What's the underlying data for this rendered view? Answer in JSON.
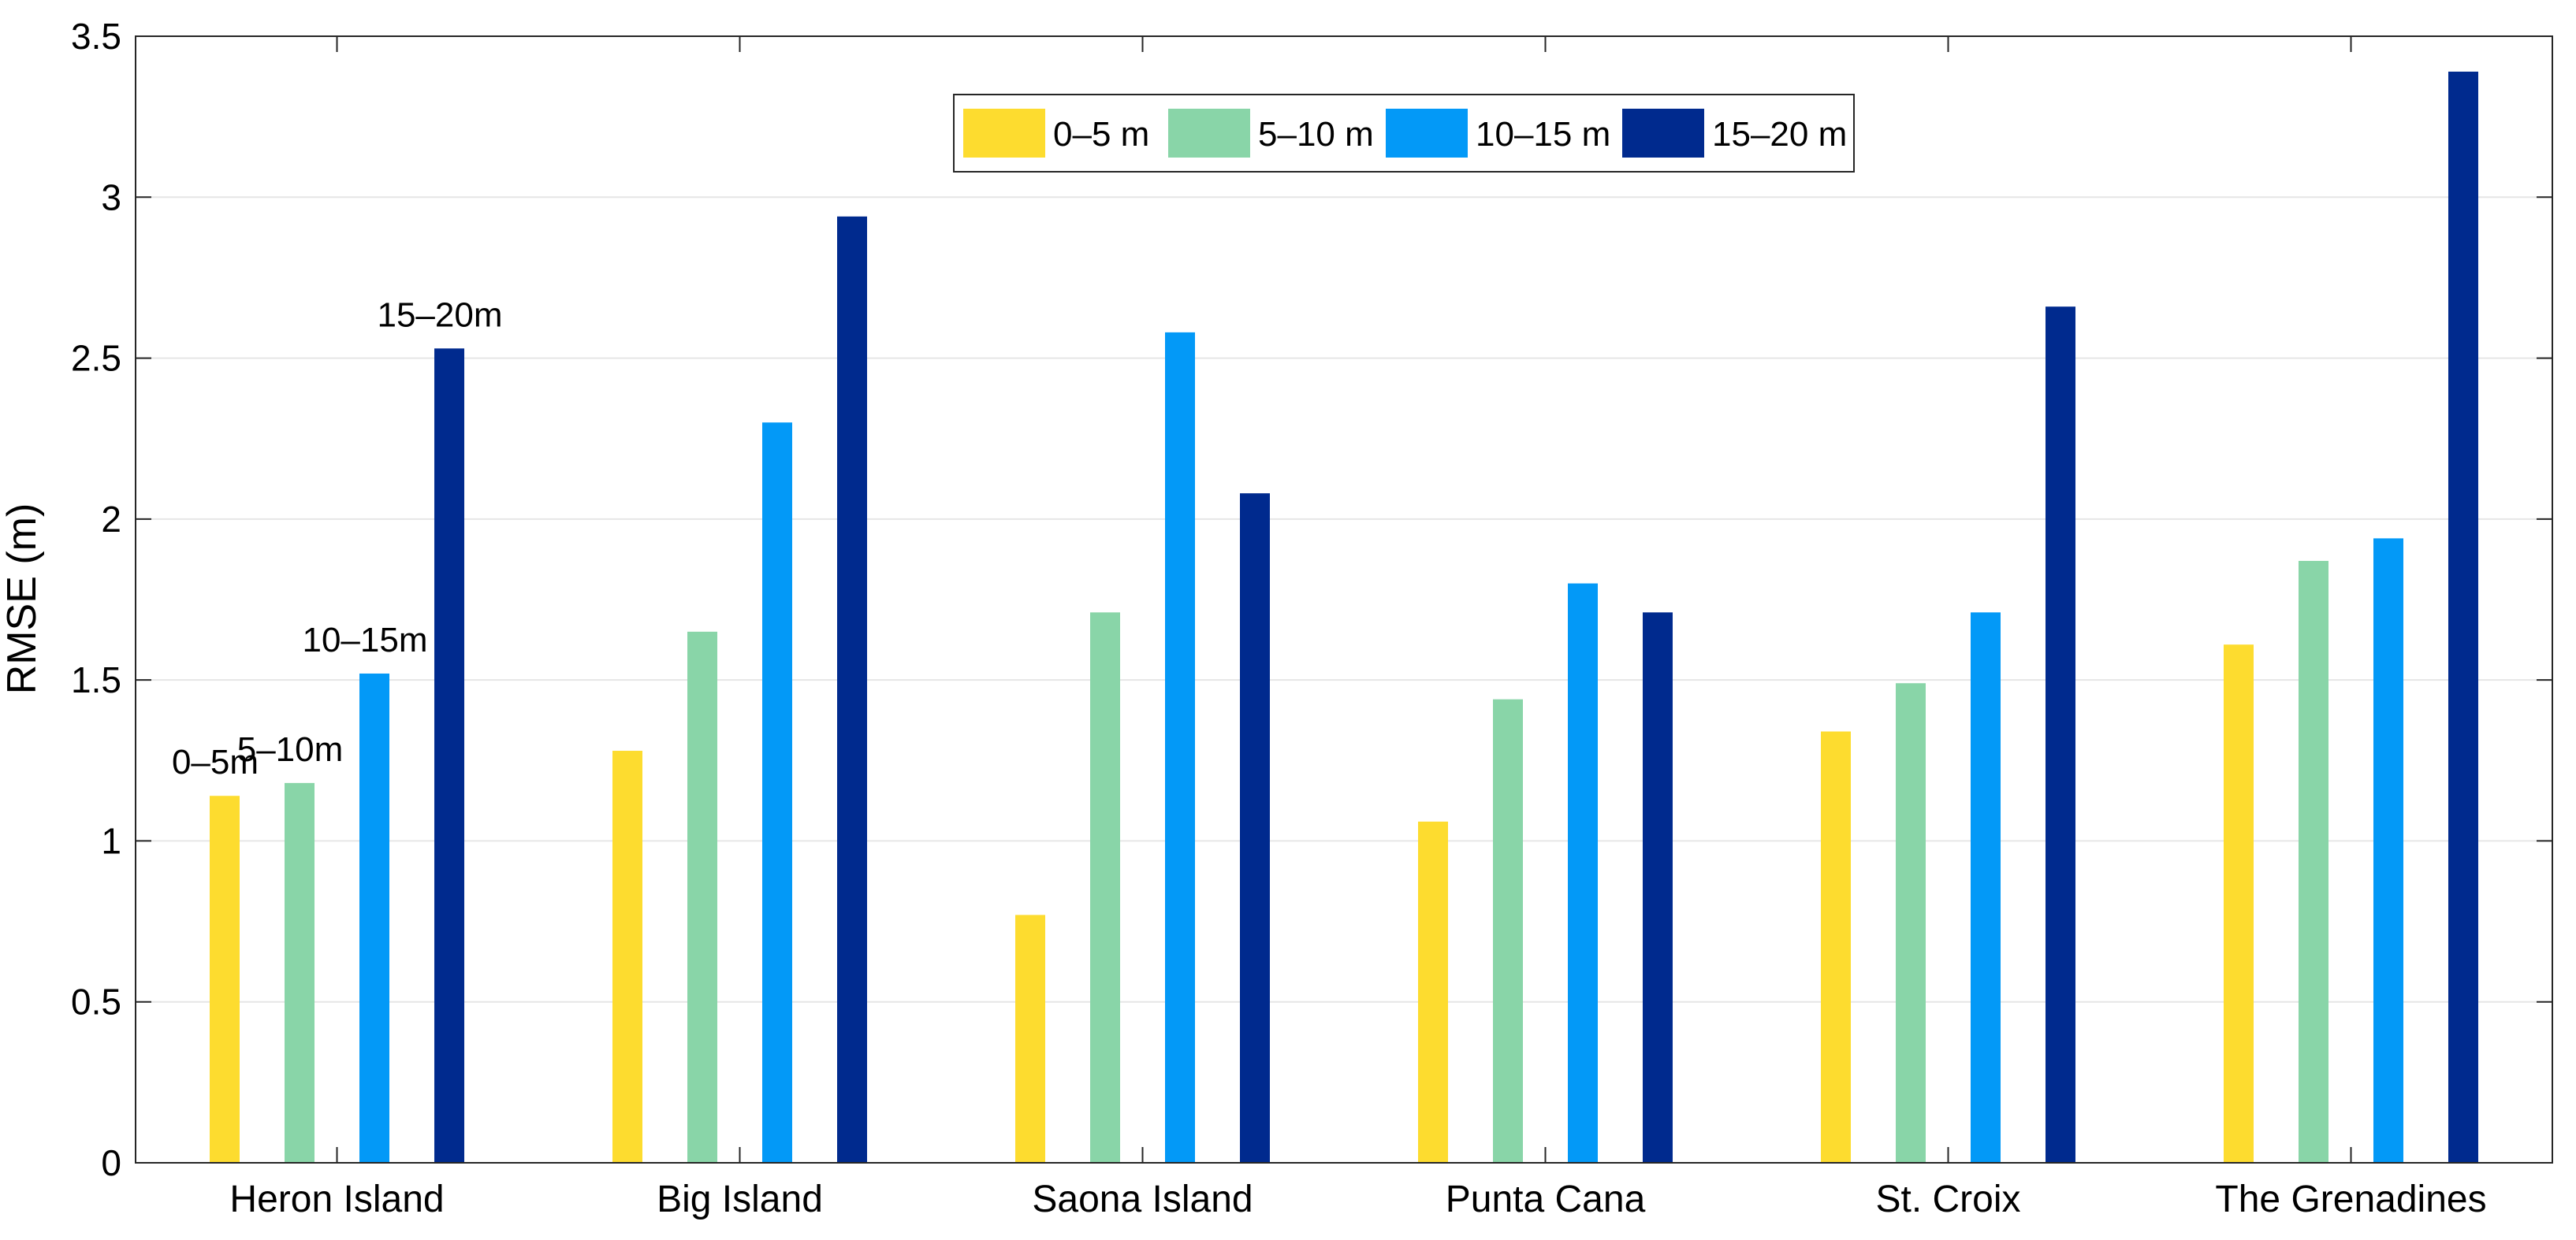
{
  "chart_data": {
    "type": "bar",
    "title": "",
    "xlabel": "",
    "ylabel": "RMSE (m)",
    "ylim": [
      0,
      3.5
    ],
    "yticks": [
      "0",
      "0.5",
      "1",
      "1.5",
      "2",
      "2.5",
      "3",
      "3.5"
    ],
    "grid": true,
    "legend_position": "top-center",
    "categories": [
      "Heron Island",
      "Big Island",
      "Saona Island",
      "Punta Cana",
      "St. Croix",
      "The Grenadines"
    ],
    "series": [
      {
        "name": "0–5 m",
        "color": "#FDDC2F",
        "values": [
          1.14,
          1.28,
          0.77,
          1.06,
          1.34,
          1.61
        ]
      },
      {
        "name": "5–10 m",
        "color": "#89D5A8",
        "values": [
          1.18,
          1.65,
          1.71,
          1.44,
          1.49,
          1.87
        ]
      },
      {
        "name": "10–15 m",
        "color": "#0399F7",
        "values": [
          1.52,
          2.3,
          2.58,
          1.8,
          1.71,
          1.94
        ]
      },
      {
        "name": "15–20 m",
        "color": "#002A8E",
        "values": [
          2.53,
          2.94,
          2.08,
          1.71,
          2.66,
          3.39
        ]
      }
    ],
    "annotations": [
      {
        "text": "0–5m",
        "category": "Heron Island",
        "series": 0
      },
      {
        "text": "5–10m",
        "category": "Heron Island",
        "series": 1
      },
      {
        "text": "10–15m",
        "category": "Heron Island",
        "series": 2
      },
      {
        "text": "15–20m",
        "category": "Heron Island",
        "series": 3
      }
    ]
  }
}
